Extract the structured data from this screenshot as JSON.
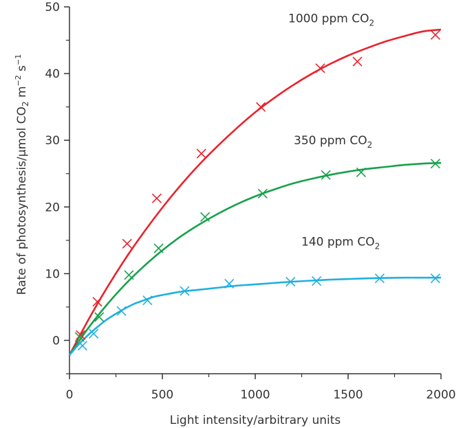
{
  "chart_data": {
    "type": "scatter",
    "title": "",
    "xlabel": "Light intensity/arbitrary units",
    "ylabel": {
      "prefix": "Rate of photosynthesis/μmol CO",
      "sub": "2",
      "mid1": " m",
      "sup1": "−2",
      "mid2": " s",
      "sup2": "−1"
    },
    "xlim": [
      0,
      2000
    ],
    "ylim": [
      -5,
      50
    ],
    "xticks": [
      0,
      500,
      1000,
      1500,
      2000
    ],
    "xticks_minor": [
      250,
      750,
      1250,
      1750
    ],
    "yticks": [
      0,
      10,
      20,
      30,
      40,
      50
    ],
    "grid": false,
    "series": [
      {
        "name": {
          "text": "1000 ppm CO",
          "sub": "2"
        },
        "color": "#e8222b",
        "marker": "x",
        "points": [
          [
            60,
            0.8
          ],
          [
            150,
            5.8
          ],
          [
            310,
            14.5
          ],
          [
            470,
            21.3
          ],
          [
            710,
            28
          ],
          [
            1030,
            35
          ],
          [
            1350,
            40.8
          ],
          [
            1550,
            41.8
          ],
          [
            1970,
            45.8
          ]
        ],
        "curve": [
          [
            0,
            -2.2
          ],
          [
            100,
            3.0
          ],
          [
            200,
            7.8
          ],
          [
            300,
            12.2
          ],
          [
            400,
            16.2
          ],
          [
            500,
            19.9
          ],
          [
            600,
            23.3
          ],
          [
            700,
            26.4
          ],
          [
            800,
            29.2
          ],
          [
            900,
            31.8
          ],
          [
            1000,
            34.2
          ],
          [
            1100,
            36.3
          ],
          [
            1200,
            38.2
          ],
          [
            1300,
            39.9
          ],
          [
            1400,
            41.4
          ],
          [
            1500,
            42.7
          ],
          [
            1600,
            43.8
          ],
          [
            1700,
            44.8
          ],
          [
            1800,
            45.6
          ],
          [
            1900,
            46.3
          ],
          [
            2000,
            46.6
          ]
        ]
      },
      {
        "name": {
          "text": "350 ppm CO",
          "sub": "2"
        },
        "color": "#16a04a",
        "marker": "x",
        "points": [
          [
            55,
            0.5
          ],
          [
            160,
            3.5
          ],
          [
            320,
            9.8
          ],
          [
            480,
            13.8
          ],
          [
            730,
            18.5
          ],
          [
            1040,
            22
          ],
          [
            1380,
            24.8
          ],
          [
            1570,
            25.2
          ],
          [
            1970,
            26.5
          ]
        ],
        "curve": [
          [
            0,
            -2.2
          ],
          [
            100,
            1.8
          ],
          [
            200,
            5.3
          ],
          [
            300,
            8.4
          ],
          [
            400,
            11.1
          ],
          [
            500,
            13.5
          ],
          [
            600,
            15.6
          ],
          [
            700,
            17.4
          ],
          [
            800,
            19.0
          ],
          [
            900,
            20.4
          ],
          [
            1000,
            21.6
          ],
          [
            1100,
            22.6
          ],
          [
            1200,
            23.5
          ],
          [
            1300,
            24.2
          ],
          [
            1400,
            24.8
          ],
          [
            1500,
            25.3
          ],
          [
            1600,
            25.7
          ],
          [
            1700,
            26.0
          ],
          [
            1800,
            26.3
          ],
          [
            1900,
            26.5
          ],
          [
            2000,
            26.6
          ]
        ]
      },
      {
        "name": {
          "text": "140 ppm CO",
          "sub": "2"
        },
        "color": "#1fb0e0",
        "marker": "x",
        "points": [
          [
            70,
            -0.8
          ],
          [
            130,
            1.0
          ],
          [
            280,
            4.4
          ],
          [
            420,
            6.0
          ],
          [
            620,
            7.4
          ],
          [
            860,
            8.5
          ],
          [
            1190,
            8.8
          ],
          [
            1330,
            8.9
          ],
          [
            1670,
            9.3
          ],
          [
            1970,
            9.3
          ]
        ],
        "curve": [
          [
            0,
            -2.2
          ],
          [
            50,
            -0.6
          ],
          [
            100,
            0.8
          ],
          [
            150,
            2.0
          ],
          [
            200,
            3.1
          ],
          [
            250,
            4.0
          ],
          [
            300,
            4.8
          ],
          [
            350,
            5.5
          ],
          [
            400,
            6.0
          ],
          [
            450,
            6.5
          ],
          [
            500,
            6.8
          ],
          [
            600,
            7.3
          ],
          [
            700,
            7.6
          ],
          [
            800,
            7.9
          ],
          [
            900,
            8.2
          ],
          [
            1000,
            8.4
          ],
          [
            1200,
            8.8
          ],
          [
            1400,
            9.1
          ],
          [
            1600,
            9.3
          ],
          [
            1800,
            9.4
          ],
          [
            1900,
            9.4
          ],
          [
            2000,
            9.4
          ]
        ]
      }
    ],
    "labels_at": [
      [
        1000,
        47.7
      ],
      [
        1000,
        29.4
      ],
      [
        1000,
        14.2
      ]
    ]
  }
}
